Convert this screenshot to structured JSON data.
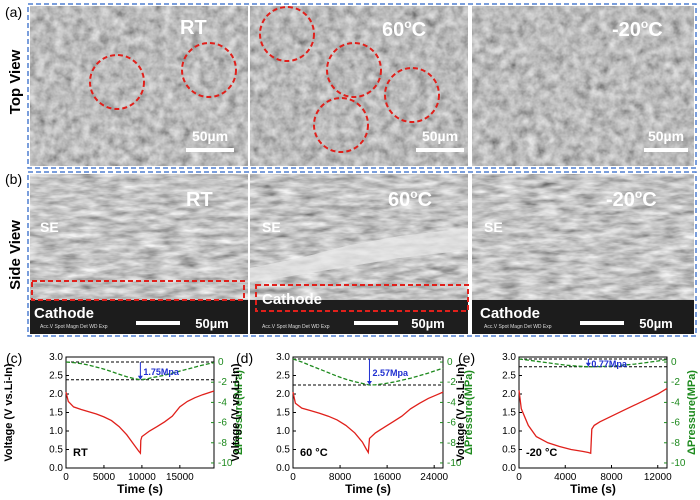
{
  "row_labels": {
    "top": "Top View",
    "side": "Side View"
  },
  "panel_labels": {
    "a": "(a)",
    "b": "(b)",
    "c": "(c)",
    "d": "(d)",
    "e": "(e)"
  },
  "top_view": [
    {
      "temp_main": "RT",
      "temp_sup": "",
      "temp_unit": "",
      "scale_bar": "50µm"
    },
    {
      "temp_main": "60",
      "temp_sup": "o",
      "temp_unit": "C",
      "scale_bar": "50µm"
    },
    {
      "temp_main": "-20",
      "temp_sup": "o",
      "temp_unit": "C",
      "scale_bar": "50µm"
    }
  ],
  "side_view": [
    {
      "temp_main": "RT",
      "temp_sup": "",
      "temp_unit": "",
      "se_label": "SE",
      "cathode_label": "Cathode",
      "scale_bar": "50µm"
    },
    {
      "temp_main": "60",
      "temp_sup": "o",
      "temp_unit": "C",
      "se_label": "SE",
      "cathode_label": "Cathode",
      "scale_bar": "50µm"
    },
    {
      "temp_main": "-20",
      "temp_sup": "o",
      "temp_unit": "C",
      "se_label": "SE",
      "cathode_label": "Cathode",
      "scale_bar": "50µm"
    }
  ],
  "colors": {
    "voltage": "#e0201b",
    "pressure": "#1e8a1e",
    "annotation": "#1f2fd0",
    "highlight": "#e0201b",
    "frame": "#4f7fd1"
  },
  "chart_data": [
    {
      "type": "line",
      "panel": "(c)",
      "title": "",
      "xlabel": "Time (s)",
      "ylabel": "Voltage (V vs.Li-In)",
      "ylabel2": "ΔPressure(MPa)",
      "xlim": [
        0,
        19500
      ],
      "ylim": [
        0,
        3.0
      ],
      "y2lim": [
        -10.5,
        0.5
      ],
      "xticks": [
        0,
        5000,
        10000,
        15000
      ],
      "xticklabels": [
        "0",
        "5000",
        "10000",
        "15000"
      ],
      "yticks": [
        0.0,
        0.5,
        1.0,
        1.5,
        2.0,
        2.5,
        3.0
      ],
      "yticklabels": [
        "0.0",
        "0.5",
        "1.0",
        "1.5",
        "2.0",
        "2.5",
        "3.0"
      ],
      "y2ticks": [
        0,
        -2,
        -4,
        -6,
        -8,
        -10
      ],
      "y2ticklabels": [
        "0",
        "-2",
        "-4",
        "-6",
        "-8",
        "-10"
      ],
      "condition": "RT",
      "annotation": "1.75Mpa",
      "ref_top": 0,
      "ref_bottom": -1.75,
      "series": [
        {
          "name": "Voltage",
          "axis": "left",
          "x": [
            0,
            300,
            1000,
            2000,
            3000,
            4000,
            5000,
            6000,
            7000,
            8000,
            9000,
            9600,
            9800,
            9850,
            10000,
            11000,
            12000,
            13000,
            14000,
            15000,
            16000,
            17000,
            18000,
            19500
          ],
          "y": [
            2.05,
            1.8,
            1.65,
            1.58,
            1.52,
            1.46,
            1.38,
            1.28,
            1.12,
            0.9,
            0.62,
            0.45,
            0.4,
            0.75,
            0.85,
            1.0,
            1.12,
            1.25,
            1.4,
            1.65,
            1.8,
            1.9,
            1.98,
            2.08
          ]
        },
        {
          "name": "ΔPressure",
          "axis": "right",
          "x": [
            0,
            1000,
            2000,
            3000,
            4000,
            5000,
            6000,
            7000,
            8000,
            9000,
            9800,
            10500,
            11000,
            12000,
            13000,
            14000,
            15000,
            16000,
            17000,
            18000,
            19500
          ],
          "y": [
            0.0,
            -0.05,
            -0.15,
            -0.3,
            -0.5,
            -0.7,
            -0.95,
            -1.2,
            -1.45,
            -1.65,
            -1.75,
            -1.7,
            -1.6,
            -1.45,
            -1.3,
            -1.1,
            -0.9,
            -0.7,
            -0.5,
            -0.3,
            -0.05
          ]
        }
      ]
    },
    {
      "type": "line",
      "panel": "(d)",
      "title": "",
      "xlabel": "Time (s)",
      "ylabel": "Voltage (V vs.Li-In)",
      "ylabel2": "ΔPressure(MPa)",
      "xlim": [
        0,
        25500
      ],
      "ylim": [
        0,
        3.0
      ],
      "y2lim": [
        -10.5,
        0.5
      ],
      "xticks": [
        0,
        8000,
        16000,
        24000
      ],
      "xticklabels": [
        "0",
        "8000",
        "16000",
        "24000"
      ],
      "yticks": [
        0.0,
        0.5,
        1.0,
        1.5,
        2.0,
        2.5,
        3.0
      ],
      "yticklabels": [
        "0.0",
        "0.5",
        "1.0",
        "1.5",
        "2.0",
        "2.5",
        "3.0"
      ],
      "y2ticks": [
        0,
        -2,
        -4,
        -6,
        -8,
        -10
      ],
      "y2ticklabels": [
        "0",
        "-2",
        "-4",
        "-6",
        "-8",
        "-10"
      ],
      "condition": "60 °C",
      "annotation": "2.57Mpa",
      "ref_top": 0.3,
      "ref_bottom": -2.27,
      "series": [
        {
          "name": "Voltage",
          "axis": "left",
          "x": [
            0,
            400,
            1500,
            3000,
            4500,
            6000,
            7500,
            9000,
            10500,
            11800,
            12500,
            12800,
            13000,
            14000,
            15500,
            17000,
            18500,
            20000,
            21500,
            23000,
            24500,
            25500
          ],
          "y": [
            2.05,
            1.75,
            1.62,
            1.55,
            1.48,
            1.4,
            1.3,
            1.15,
            0.95,
            0.7,
            0.5,
            0.42,
            0.8,
            0.95,
            1.1,
            1.25,
            1.4,
            1.6,
            1.75,
            1.88,
            1.98,
            2.05
          ]
        },
        {
          "name": "ΔPressure",
          "axis": "right",
          "x": [
            0,
            1500,
            3000,
            4500,
            6000,
            7500,
            9000,
            10500,
            12000,
            13000,
            14000,
            15500,
            17000,
            18500,
            20000,
            21500,
            23000,
            24500,
            25500
          ],
          "y": [
            0.3,
            0.0,
            -0.35,
            -0.7,
            -1.05,
            -1.4,
            -1.7,
            -1.95,
            -2.15,
            -2.27,
            -2.25,
            -2.15,
            -2.0,
            -1.8,
            -1.6,
            -1.35,
            -1.1,
            -0.8,
            -0.6
          ]
        }
      ]
    },
    {
      "type": "line",
      "panel": "(e)",
      "title": "",
      "xlabel": "Time (s)",
      "ylabel": "Voltage (V vs.Li-In)",
      "ylabel2": "ΔPressure(MPa)",
      "xlim": [
        0,
        12800
      ],
      "ylim": [
        0,
        3.0
      ],
      "y2lim": [
        -10.5,
        0.5
      ],
      "xticks": [
        0,
        4000,
        8000,
        12000
      ],
      "xticklabels": [
        "0",
        "4000",
        "8000",
        "12000"
      ],
      "yticks": [
        0.0,
        0.5,
        1.0,
        1.5,
        2.0,
        2.5,
        3.0
      ],
      "yticklabels": [
        "0.0",
        "0.5",
        "1.0",
        "1.5",
        "2.0",
        "2.5",
        "3.0"
      ],
      "y2ticks": [
        0,
        -2,
        -4,
        -6,
        -8,
        -10
      ],
      "y2ticklabels": [
        "0",
        "-2",
        "-4",
        "-6",
        "-8",
        "-10"
      ],
      "condition": "-20 °C",
      "annotation": "0.77Mpa",
      "ref_top": 0.3,
      "ref_bottom": -0.47,
      "series": [
        {
          "name": "Voltage",
          "axis": "left",
          "x": [
            0,
            200,
            800,
            1500,
            2500,
            3500,
            4500,
            5500,
            6000,
            6200,
            6300,
            6500,
            7000,
            8000,
            9000,
            10000,
            11000,
            12000,
            12800
          ],
          "y": [
            2.1,
            1.6,
            1.15,
            0.85,
            0.68,
            0.58,
            0.5,
            0.45,
            0.42,
            0.4,
            1.05,
            1.15,
            1.25,
            1.4,
            1.55,
            1.7,
            1.85,
            2.0,
            2.15
          ]
        },
        {
          "name": "ΔPressure",
          "axis": "right",
          "x": [
            0,
            1000,
            2000,
            3000,
            4000,
            5000,
            6000,
            7000,
            8000,
            9000,
            10000,
            11000,
            12000,
            12800
          ],
          "y": [
            0.3,
            0.15,
            0.0,
            -0.15,
            -0.3,
            -0.4,
            -0.47,
            -0.45,
            -0.4,
            -0.3,
            -0.2,
            -0.05,
            0.1,
            0.25
          ]
        }
      ]
    }
  ]
}
